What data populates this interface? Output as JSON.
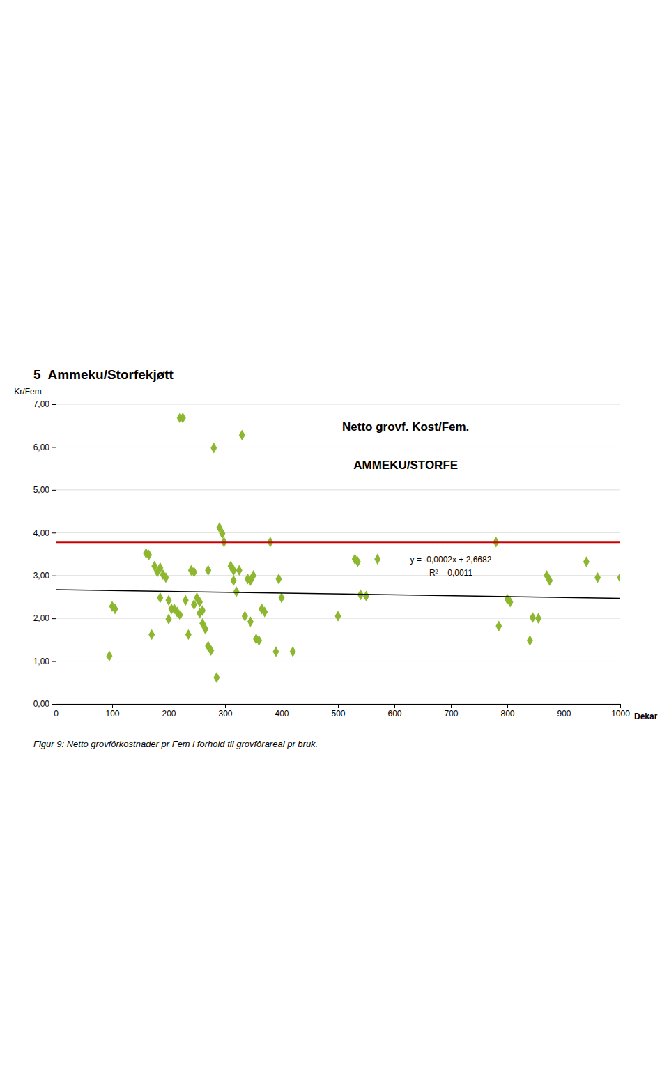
{
  "heading": "5  Ammeku/Storfekjøtt",
  "caption": "Figur 9: Netto grovfôrkostnader pr Fem i forhold til grovfôrareal pr bruk.",
  "chart_data": {
    "type": "scatter",
    "title": "Netto grovf. Kost/Fem.",
    "subtitle": "AMMEKU/STORFE",
    "x_label": "Dekar",
    "y_label": "Kr/Fem",
    "annotations": [
      "y = -0,0002x + 2,6682",
      "R² = 0,0011"
    ],
    "xlim": [
      0,
      1000
    ],
    "ylim": [
      0,
      7.0
    ],
    "xticks": [
      0,
      100,
      200,
      300,
      400,
      500,
      600,
      700,
      800,
      900,
      1000
    ],
    "yticks": [
      {
        "value": 0.0,
        "label": "0,00"
      },
      {
        "value": 1.0,
        "label": "1,00"
      },
      {
        "value": 2.0,
        "label": "2,00"
      },
      {
        "value": 3.0,
        "label": "3,00"
      },
      {
        "value": 4.0,
        "label": "4,00"
      },
      {
        "value": 5.0,
        "label": "5,00"
      },
      {
        "value": 6.0,
        "label": "6,00"
      },
      {
        "value": 7.0,
        "label": "7,00"
      }
    ],
    "grid": "y",
    "series": [
      {
        "type": "scatter",
        "color": "#8DB72E",
        "marker": "diamond",
        "x": [
          95,
          100,
          105,
          160,
          165,
          170,
          175,
          180,
          185,
          185,
          190,
          195,
          200,
          200,
          205,
          210,
          215,
          220,
          220,
          225,
          230,
          235,
          240,
          245,
          245,
          250,
          255,
          255,
          260,
          260,
          265,
          270,
          270,
          275,
          280,
          285,
          290,
          295,
          298,
          310,
          315,
          315,
          320,
          325,
          330,
          335,
          340,
          345,
          345,
          350,
          355,
          360,
          365,
          370,
          380,
          390,
          395,
          400,
          420,
          500,
          530,
          535,
          540,
          550,
          570,
          780,
          785,
          800,
          805,
          840,
          845,
          855,
          870,
          875,
          940,
          960,
          1000
        ],
        "values": [
          1.12,
          2.28,
          2.22,
          3.52,
          3.48,
          1.62,
          3.22,
          3.08,
          3.18,
          2.48,
          3.02,
          2.95,
          2.42,
          1.98,
          2.22,
          2.22,
          2.15,
          2.08,
          6.68,
          6.68,
          2.42,
          1.62,
          3.12,
          3.08,
          2.32,
          2.48,
          2.38,
          2.12,
          2.18,
          1.88,
          1.75,
          3.12,
          1.35,
          1.25,
          5.98,
          0.62,
          4.12,
          3.98,
          3.78,
          3.22,
          3.12,
          2.88,
          2.62,
          3.12,
          6.28,
          2.05,
          2.92,
          2.88,
          1.92,
          3.0,
          1.52,
          1.48,
          2.22,
          2.15,
          3.78,
          1.22,
          2.92,
          2.48,
          1.22,
          2.05,
          3.38,
          3.32,
          2.55,
          2.52,
          3.38,
          3.78,
          1.82,
          2.45,
          2.38,
          1.48,
          2.02,
          2.0,
          3.0,
          2.88,
          3.32,
          2.95,
          2.95
        ]
      },
      {
        "type": "line",
        "color": "#000000",
        "line_style": "solid",
        "x": [
          0,
          1000
        ],
        "values": [
          2.6682,
          2.4682
        ]
      },
      {
        "type": "line",
        "color": "#CC0000",
        "line_style": "solid",
        "x": [
          0,
          1000
        ],
        "values": [
          3.78,
          3.78
        ]
      }
    ]
  }
}
